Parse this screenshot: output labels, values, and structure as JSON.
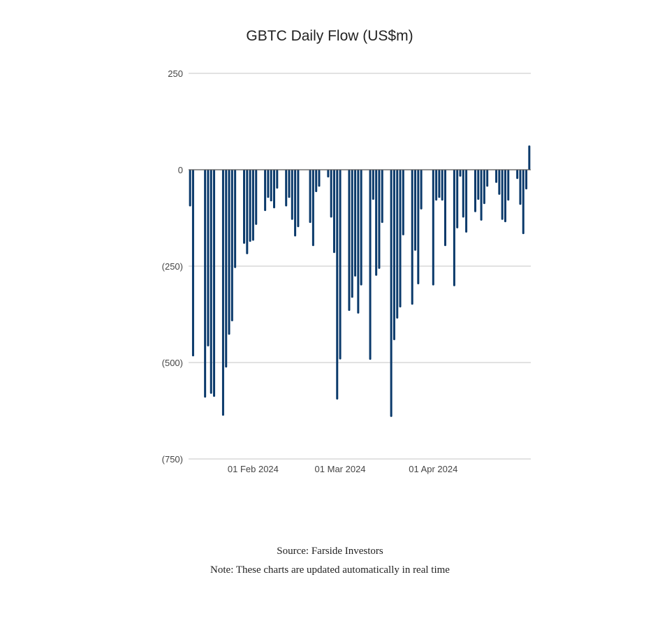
{
  "chart_data": {
    "type": "bar",
    "title": "GBTC Daily Flow (US$m)",
    "xlabel": "",
    "ylabel": "",
    "x_units": "day of year 2024",
    "ylim": [
      -750,
      250
    ],
    "xlim": [
      10.5,
      124.5
    ],
    "grid": true,
    "bar_color": "#0b3a6b",
    "y_ticks": [
      {
        "value": 250,
        "label": "250"
      },
      {
        "value": 0,
        "label": "0"
      },
      {
        "value": -250,
        "label": "(250)"
      },
      {
        "value": -500,
        "label": "(500)"
      },
      {
        "value": -750,
        "label": "(750)"
      }
    ],
    "x_ticks": [
      {
        "value": 32,
        "label": "01 Feb 2024"
      },
      {
        "value": 61,
        "label": "01 Mar 2024"
      },
      {
        "value": 92,
        "label": "01 Apr 2024"
      }
    ],
    "x": [
      11,
      12,
      16,
      17,
      18,
      19,
      22,
      23,
      24,
      25,
      26,
      29,
      30,
      31,
      32,
      33,
      36,
      37,
      38,
      39,
      40,
      43,
      44,
      45,
      46,
      47,
      51,
      52,
      53,
      54,
      57,
      58,
      59,
      60,
      61,
      64,
      65,
      66,
      67,
      68,
      71,
      72,
      73,
      74,
      75,
      78,
      79,
      80,
      81,
      82,
      85,
      86,
      87,
      88,
      92,
      93,
      94,
      95,
      96,
      99,
      100,
      101,
      102,
      103,
      106,
      107,
      108,
      109,
      110,
      113,
      114,
      115,
      116,
      117,
      120,
      121,
      122,
      123,
      124
    ],
    "values": [
      -95,
      -484,
      -591,
      -458,
      -581,
      -589,
      -638,
      -513,
      -428,
      -393,
      -255,
      -192,
      -219,
      -187,
      -184,
      -143,
      -107,
      -73,
      -82,
      -100,
      -49,
      -95,
      -73,
      -130,
      -173,
      -149,
      -138,
      -198,
      -58,
      -44,
      -20,
      -124,
      -216,
      -596,
      -492,
      -366,
      -332,
      -277,
      -373,
      -300,
      -493,
      -78,
      -275,
      -257,
      -138,
      -641,
      -442,
      -386,
      -357,
      -170,
      -350,
      -210,
      -297,
      -103,
      -300,
      -80,
      -73,
      -80,
      -198,
      -302,
      -152,
      -18,
      -124,
      -163,
      -110,
      -78,
      -132,
      -89,
      -44,
      -34,
      -65,
      -130,
      -136,
      -80,
      -24,
      -91,
      -167,
      -51,
      63
    ]
  },
  "footer": {
    "source": "Source: Farside Investors",
    "note": "Note: These charts are updated automatically in real time"
  }
}
